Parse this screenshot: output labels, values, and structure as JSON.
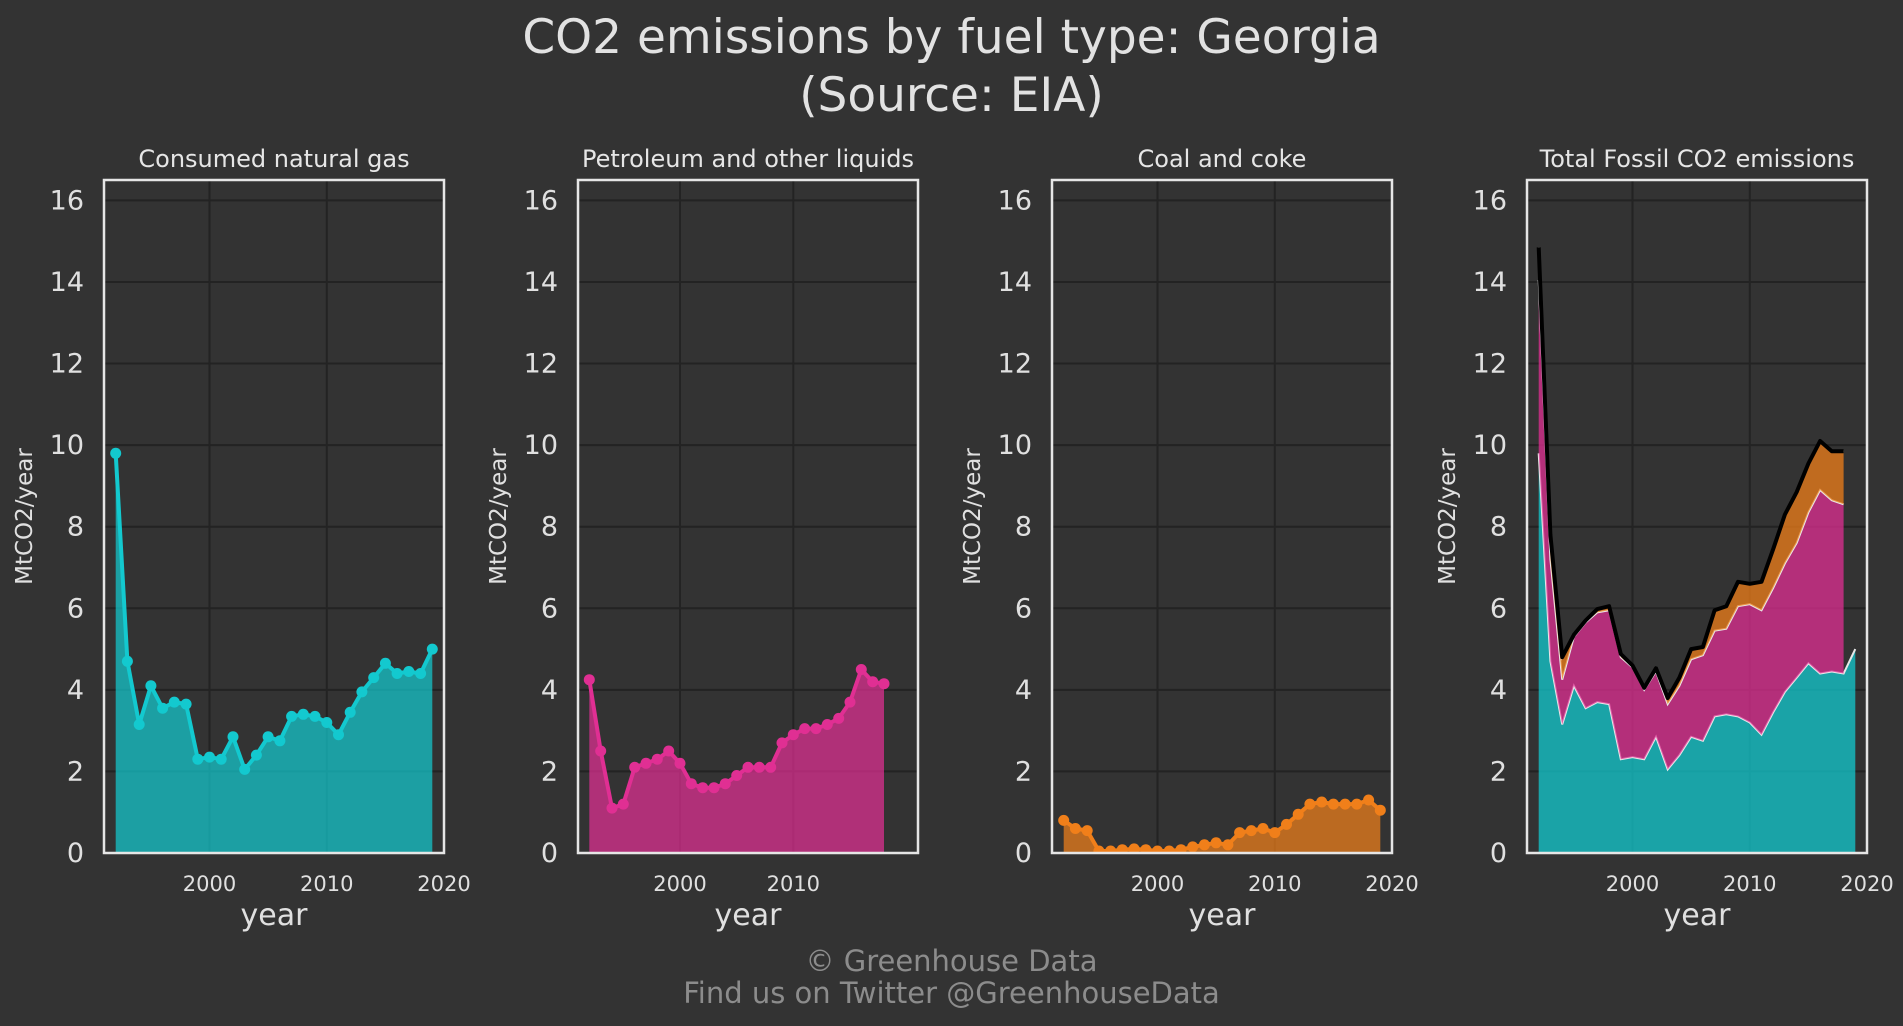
{
  "header": {
    "title_line1": "CO2 emissions by fuel type: Georgia",
    "title_line2": "(Source: EIA)"
  },
  "footer": {
    "line1": "© Greenhouse Data",
    "line2": "Find us on Twitter @GreenhouseData"
  },
  "colors": {
    "background": "#333333",
    "panel_frame": "#e6e6e6",
    "grid": "#232323",
    "natural_gas": "#13c9cf",
    "petroleum": "#e02f93",
    "coal": "#f07f1a",
    "total_line": "#000000"
  },
  "chart_data": [
    {
      "type": "area",
      "title": "Consumed natural gas",
      "xlabel": "year",
      "ylabel": "MtCO2/year",
      "xlim": [
        1991,
        2020
      ],
      "ylim": [
        0,
        16.5
      ],
      "xticks": [
        2000,
        2010,
        2020
      ],
      "yticks": [
        0,
        2,
        4,
        6,
        8,
        10,
        12,
        14,
        16
      ],
      "grid": true,
      "series": [
        {
          "color_key": "natural_gas",
          "markers": true,
          "x": [
            1992,
            1993,
            1994,
            1995,
            1996,
            1997,
            1998,
            1999,
            2000,
            2001,
            2002,
            2003,
            2004,
            2005,
            2006,
            2007,
            2008,
            2009,
            2010,
            2011,
            2012,
            2013,
            2014,
            2015,
            2016,
            2017,
            2018,
            2019
          ],
          "values": [
            9.8,
            4.7,
            3.15,
            4.1,
            3.55,
            3.7,
            3.65,
            2.3,
            2.35,
            2.3,
            2.85,
            2.05,
            2.4,
            2.85,
            2.75,
            3.35,
            3.4,
            3.35,
            3.2,
            2.9,
            3.45,
            3.95,
            4.3,
            4.65,
            4.4,
            4.45,
            4.4,
            5.0
          ]
        }
      ]
    },
    {
      "type": "area",
      "title": "Petroleum and other liquids",
      "xlabel": "year",
      "ylabel": "MtCO2/year",
      "xlim": [
        1991,
        2021
      ],
      "ylim": [
        0,
        16.5
      ],
      "xticks": [
        2000,
        2010
      ],
      "yticks": [
        0,
        2,
        4,
        6,
        8,
        10,
        12,
        14,
        16
      ],
      "grid": true,
      "series": [
        {
          "color_key": "petroleum",
          "markers": true,
          "x": [
            1992,
            1993,
            1994,
            1995,
            1996,
            1997,
            1998,
            1999,
            2000,
            2001,
            2002,
            2003,
            2004,
            2005,
            2006,
            2007,
            2008,
            2009,
            2010,
            2011,
            2012,
            2013,
            2014,
            2015,
            2016,
            2017,
            2018
          ],
          "values": [
            4.25,
            2.5,
            1.1,
            1.2,
            2.1,
            2.2,
            2.3,
            2.5,
            2.2,
            1.7,
            1.6,
            1.6,
            1.7,
            1.9,
            2.1,
            2.1,
            2.1,
            2.7,
            2.9,
            3.05,
            3.05,
            3.15,
            3.3,
            3.7,
            4.5,
            4.2,
            4.15
          ]
        }
      ]
    },
    {
      "type": "area",
      "title": "Coal and coke",
      "xlabel": "year",
      "ylabel": "MtCO2/year",
      "xlim": [
        1991,
        2020
      ],
      "ylim": [
        0,
        16.5
      ],
      "xticks": [
        2000,
        2010,
        2020
      ],
      "yticks": [
        0,
        2,
        4,
        6,
        8,
        10,
        12,
        14,
        16
      ],
      "grid": true,
      "series": [
        {
          "color_key": "coal",
          "markers": true,
          "x": [
            1992,
            1993,
            1994,
            1995,
            1996,
            1997,
            1998,
            1999,
            2000,
            2001,
            2002,
            2003,
            2004,
            2005,
            2006,
            2007,
            2008,
            2009,
            2010,
            2011,
            2012,
            2013,
            2014,
            2015,
            2016,
            2017,
            2018,
            2019
          ],
          "values": [
            0.8,
            0.6,
            0.55,
            0.05,
            0.05,
            0.08,
            0.1,
            0.08,
            0.05,
            0.05,
            0.08,
            0.15,
            0.2,
            0.25,
            0.2,
            0.5,
            0.55,
            0.6,
            0.5,
            0.7,
            0.95,
            1.2,
            1.25,
            1.2,
            1.2,
            1.2,
            1.3,
            1.05
          ]
        }
      ]
    },
    {
      "type": "area",
      "title": "Total Fossil CO2 emissions",
      "xlabel": "year",
      "ylabel": "MtCO2/year",
      "xlim": [
        1991,
        2020
      ],
      "ylim": [
        0,
        16.5
      ],
      "xticks": [
        2000,
        2010,
        2020
      ],
      "yticks": [
        0,
        2,
        4,
        6,
        8,
        10,
        12,
        14,
        16
      ],
      "grid": true,
      "stacked": true,
      "series": [
        {
          "color_key": "natural_gas",
          "x": [
            1992,
            1993,
            1994,
            1995,
            1996,
            1997,
            1998,
            1999,
            2000,
            2001,
            2002,
            2003,
            2004,
            2005,
            2006,
            2007,
            2008,
            2009,
            2010,
            2011,
            2012,
            2013,
            2014,
            2015,
            2016,
            2017,
            2018,
            2019
          ],
          "values": [
            9.8,
            4.7,
            3.15,
            4.1,
            3.55,
            3.7,
            3.65,
            2.3,
            2.35,
            2.3,
            2.85,
            2.05,
            2.4,
            2.85,
            2.75,
            3.35,
            3.4,
            3.35,
            3.2,
            2.9,
            3.45,
            3.95,
            4.3,
            4.65,
            4.4,
            4.45,
            4.4,
            5.0
          ]
        },
        {
          "color_key": "petroleum",
          "x": [
            1992,
            1993,
            1994,
            1995,
            1996,
            1997,
            1998,
            1999,
            2000,
            2001,
            2002,
            2003,
            2004,
            2005,
            2006,
            2007,
            2008,
            2009,
            2010,
            2011,
            2012,
            2013,
            2014,
            2015,
            2016,
            2017,
            2018
          ],
          "values": [
            4.25,
            2.5,
            1.1,
            1.2,
            2.1,
            2.2,
            2.3,
            2.5,
            2.2,
            1.7,
            1.6,
            1.6,
            1.7,
            1.9,
            2.1,
            2.1,
            2.1,
            2.7,
            2.9,
            3.05,
            3.05,
            3.15,
            3.3,
            3.7,
            4.5,
            4.2,
            4.15
          ]
        },
        {
          "color_key": "coal",
          "x": [
            1992,
            1993,
            1994,
            1995,
            1996,
            1997,
            1998,
            1999,
            2000,
            2001,
            2002,
            2003,
            2004,
            2005,
            2006,
            2007,
            2008,
            2009,
            2010,
            2011,
            2012,
            2013,
            2014,
            2015,
            2016,
            2017,
            2018
          ],
          "values": [
            0.8,
            0.6,
            0.55,
            0.05,
            0.05,
            0.08,
            0.1,
            0.08,
            0.05,
            0.05,
            0.08,
            0.15,
            0.2,
            0.25,
            0.2,
            0.5,
            0.55,
            0.6,
            0.5,
            0.7,
            0.95,
            1.2,
            1.25,
            1.2,
            1.2,
            1.2,
            1.3
          ]
        }
      ],
      "total_line": {
        "color_key": "total_line",
        "x": [
          1992,
          1993,
          1994,
          1995,
          1996,
          1997,
          1998,
          1999,
          2000,
          2001,
          2002,
          2003,
          2004,
          2005,
          2006,
          2007,
          2008,
          2009,
          2010,
          2011,
          2012,
          2013,
          2014,
          2015,
          2016,
          2017,
          2018
        ],
        "values": [
          14.85,
          7.8,
          4.8,
          5.35,
          5.7,
          5.98,
          6.05,
          4.88,
          4.6,
          4.05,
          4.53,
          3.8,
          4.3,
          5.0,
          5.05,
          5.95,
          6.05,
          6.65,
          6.6,
          6.65,
          7.45,
          8.3,
          8.85,
          9.55,
          10.1,
          9.85,
          9.85
        ]
      }
    }
  ]
}
